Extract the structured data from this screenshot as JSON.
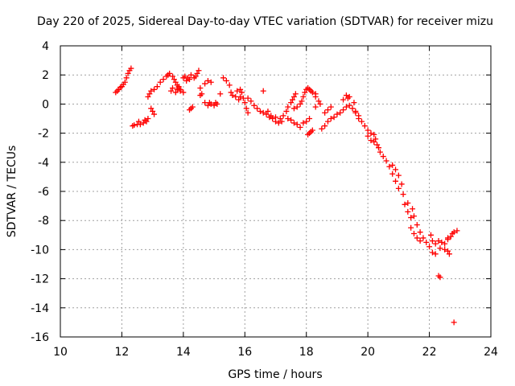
{
  "chart_data": {
    "type": "scatter",
    "title": "Day 220 of 2025, Sidereal Day-to-day VTEC variation (SDTVAR) for receiver mizu",
    "xlabel": "GPS time / hours",
    "ylabel": "SDTVAR / TECUs",
    "xlim": [
      10,
      24
    ],
    "ylim": [
      -16,
      4
    ],
    "xticks": [
      10,
      12,
      14,
      16,
      18,
      20,
      22,
      24
    ],
    "yticks": [
      4,
      2,
      0,
      -2,
      -4,
      -6,
      -8,
      -10,
      -12,
      -14,
      -16
    ],
    "grid": true,
    "marker": "+",
    "colors": {
      "series": "#ff0000",
      "grid": "#a0a0a0",
      "axis": "#000000"
    },
    "series": [
      {
        "name": "mizu",
        "points": [
          [
            11.8,
            0.8
          ],
          [
            11.85,
            0.9
          ],
          [
            11.9,
            1.0
          ],
          [
            11.95,
            1.15
          ],
          [
            12.0,
            1.2
          ],
          [
            12.05,
            1.35
          ],
          [
            12.1,
            1.5
          ],
          [
            12.15,
            1.8
          ],
          [
            12.2,
            2.1
          ],
          [
            12.25,
            2.3
          ],
          [
            12.3,
            2.45
          ],
          [
            12.35,
            -1.5
          ],
          [
            12.4,
            -1.45
          ],
          [
            12.5,
            -1.4
          ],
          [
            12.55,
            -1.2
          ],
          [
            12.6,
            -1.4
          ],
          [
            12.7,
            -1.3
          ],
          [
            12.75,
            -1.1
          ],
          [
            12.8,
            -1.2
          ],
          [
            12.85,
            -1.0
          ],
          [
            12.95,
            -0.3
          ],
          [
            13.0,
            -0.5
          ],
          [
            13.05,
            -0.7
          ],
          [
            12.85,
            0.5
          ],
          [
            12.9,
            0.7
          ],
          [
            12.95,
            0.9
          ],
          [
            13.05,
            1.0
          ],
          [
            13.15,
            1.2
          ],
          [
            13.25,
            1.5
          ],
          [
            13.35,
            1.7
          ],
          [
            13.45,
            1.9
          ],
          [
            13.5,
            2.0
          ],
          [
            13.55,
            2.1
          ],
          [
            13.65,
            1.9
          ],
          [
            13.7,
            1.7
          ],
          [
            13.75,
            1.5
          ],
          [
            13.8,
            1.3
          ],
          [
            13.85,
            1.1
          ],
          [
            13.9,
            0.9
          ],
          [
            13.6,
            0.9
          ],
          [
            13.65,
            1.1
          ],
          [
            13.75,
            0.8
          ],
          [
            13.8,
            1.0
          ],
          [
            13.85,
            1.2
          ],
          [
            13.9,
            1.0
          ],
          [
            14.0,
            0.8
          ],
          [
            14.0,
            1.8
          ],
          [
            14.05,
            1.9
          ],
          [
            14.1,
            1.6
          ],
          [
            14.15,
            1.8
          ],
          [
            14.2,
            1.7
          ],
          [
            14.25,
            2.0
          ],
          [
            14.35,
            1.8
          ],
          [
            14.4,
            1.9
          ],
          [
            14.45,
            2.1
          ],
          [
            14.5,
            2.3
          ],
          [
            14.2,
            -0.4
          ],
          [
            14.25,
            -0.3
          ],
          [
            14.3,
            -0.2
          ],
          [
            14.55,
            0.6
          ],
          [
            14.6,
            0.7
          ],
          [
            14.55,
            1.1
          ],
          [
            14.7,
            1.4
          ],
          [
            14.8,
            1.6
          ],
          [
            14.9,
            1.5
          ],
          [
            14.7,
            0.1
          ],
          [
            14.8,
            -0.1
          ],
          [
            14.85,
            0.1
          ],
          [
            14.9,
            0.0
          ],
          [
            15.0,
            -0.1
          ],
          [
            15.05,
            0.1
          ],
          [
            15.1,
            0.0
          ],
          [
            15.2,
            0.7
          ],
          [
            15.3,
            1.8
          ],
          [
            15.4,
            1.6
          ],
          [
            15.5,
            1.3
          ],
          [
            15.55,
            0.8
          ],
          [
            15.6,
            0.6
          ],
          [
            15.7,
            0.5
          ],
          [
            15.8,
            0.3
          ],
          [
            15.85,
            1.0
          ],
          [
            15.9,
            0.8
          ],
          [
            15.95,
            0.4
          ],
          [
            16.0,
            0.1
          ],
          [
            15.75,
            0.9
          ],
          [
            15.85,
            0.5
          ],
          [
            16.05,
            -0.3
          ],
          [
            16.1,
            -0.6
          ],
          [
            16.1,
            0.4
          ],
          [
            16.2,
            0.2
          ],
          [
            16.3,
            -0.1
          ],
          [
            16.4,
            -0.3
          ],
          [
            16.5,
            -0.5
          ],
          [
            16.6,
            -0.6
          ],
          [
            16.6,
            0.9
          ],
          [
            16.7,
            -0.7
          ],
          [
            16.8,
            -0.9
          ],
          [
            16.9,
            -1.0
          ],
          [
            17.0,
            -1.2
          ],
          [
            17.1,
            -1.3
          ],
          [
            17.2,
            -1.2
          ],
          [
            16.75,
            -0.5
          ],
          [
            16.85,
            -0.8
          ],
          [
            17.0,
            -0.9
          ],
          [
            17.15,
            -1.0
          ],
          [
            17.25,
            -0.8
          ],
          [
            17.35,
            -0.5
          ],
          [
            17.4,
            -0.2
          ],
          [
            17.5,
            0.1
          ],
          [
            17.55,
            0.3
          ],
          [
            17.6,
            0.5
          ],
          [
            17.65,
            0.7
          ],
          [
            17.4,
            -1.0
          ],
          [
            17.5,
            -1.1
          ],
          [
            17.6,
            -1.3
          ],
          [
            17.7,
            -1.4
          ],
          [
            17.8,
            -1.6
          ],
          [
            17.6,
            -0.3
          ],
          [
            17.7,
            -0.2
          ],
          [
            17.8,
            0.0
          ],
          [
            17.85,
            0.2
          ],
          [
            17.9,
            0.5
          ],
          [
            17.95,
            0.8
          ],
          [
            17.9,
            -1.3
          ],
          [
            18.0,
            -1.2
          ],
          [
            18.1,
            -1.0
          ],
          [
            18.0,
            1.0
          ],
          [
            18.05,
            1.1
          ],
          [
            18.1,
            1.0
          ],
          [
            18.15,
            0.9
          ],
          [
            18.2,
            0.8
          ],
          [
            18.3,
            0.7
          ],
          [
            18.05,
            -2.1
          ],
          [
            18.1,
            -2.0
          ],
          [
            18.15,
            -1.9
          ],
          [
            18.2,
            -1.8
          ],
          [
            18.3,
            -0.2
          ],
          [
            18.3,
            0.5
          ],
          [
            18.4,
            0.2
          ],
          [
            18.45,
            0.0
          ],
          [
            18.5,
            -1.7
          ],
          [
            18.6,
            -1.5
          ],
          [
            18.7,
            -1.2
          ],
          [
            18.8,
            -1.0
          ],
          [
            18.9,
            -0.9
          ],
          [
            19.0,
            -0.7
          ],
          [
            18.6,
            -0.6
          ],
          [
            18.7,
            -0.4
          ],
          [
            18.8,
            -0.2
          ],
          [
            19.2,
            0.3
          ],
          [
            19.3,
            0.6
          ],
          [
            19.35,
            0.4
          ],
          [
            19.4,
            0.5
          ],
          [
            19.1,
            -0.6
          ],
          [
            19.2,
            -0.4
          ],
          [
            19.3,
            -0.2
          ],
          [
            19.4,
            -0.1
          ],
          [
            19.5,
            -0.3
          ],
          [
            19.6,
            -0.6
          ],
          [
            19.7,
            -0.8
          ],
          [
            19.55,
            0.1
          ],
          [
            19.6,
            -0.5
          ],
          [
            19.7,
            -1.0
          ],
          [
            19.8,
            -1.2
          ],
          [
            19.9,
            -1.5
          ],
          [
            20.0,
            -1.8
          ],
          [
            20.1,
            -2.0
          ],
          [
            20.2,
            -2.1
          ],
          [
            20.25,
            -2.4
          ],
          [
            20.3,
            -2.8
          ],
          [
            20.0,
            -2.2
          ],
          [
            20.1,
            -2.5
          ],
          [
            20.2,
            -2.6
          ],
          [
            20.35,
            -3.0
          ],
          [
            20.4,
            -3.3
          ],
          [
            20.5,
            -3.6
          ],
          [
            20.6,
            -3.9
          ],
          [
            20.7,
            -4.3
          ],
          [
            20.8,
            -4.8
          ],
          [
            20.9,
            -5.3
          ],
          [
            21.0,
            -5.8
          ],
          [
            20.8,
            -4.2
          ],
          [
            20.9,
            -4.5
          ],
          [
            21.0,
            -4.9
          ],
          [
            21.1,
            -5.5
          ],
          [
            21.15,
            -6.2
          ],
          [
            21.2,
            -6.9
          ],
          [
            21.3,
            -7.4
          ],
          [
            21.4,
            -7.8
          ],
          [
            21.3,
            -6.8
          ],
          [
            21.45,
            -7.2
          ],
          [
            21.5,
            -7.7
          ],
          [
            21.6,
            -8.3
          ],
          [
            21.7,
            -8.8
          ],
          [
            21.4,
            -8.5
          ],
          [
            21.5,
            -8.9
          ],
          [
            21.6,
            -9.2
          ],
          [
            21.7,
            -9.4
          ],
          [
            21.8,
            -9.2
          ],
          [
            21.9,
            -9.5
          ],
          [
            22.0,
            -9.8
          ],
          [
            22.1,
            -10.2
          ],
          [
            22.2,
            -10.3
          ],
          [
            22.05,
            -9.0
          ],
          [
            22.1,
            -9.4
          ],
          [
            22.2,
            -9.6
          ],
          [
            22.3,
            -9.4
          ],
          [
            22.4,
            -9.5
          ],
          [
            22.5,
            -9.6
          ],
          [
            22.6,
            -9.3
          ],
          [
            22.35,
            -9.9
          ],
          [
            22.5,
            -10.0
          ],
          [
            22.6,
            -10.1
          ],
          [
            22.65,
            -10.3
          ],
          [
            22.6,
            -9.2
          ],
          [
            22.7,
            -9.1
          ],
          [
            22.75,
            -8.9
          ],
          [
            22.8,
            -8.8
          ],
          [
            22.9,
            -8.7
          ],
          [
            22.3,
            -11.8
          ],
          [
            22.35,
            -11.9
          ],
          [
            22.8,
            -15.0
          ]
        ]
      }
    ]
  }
}
